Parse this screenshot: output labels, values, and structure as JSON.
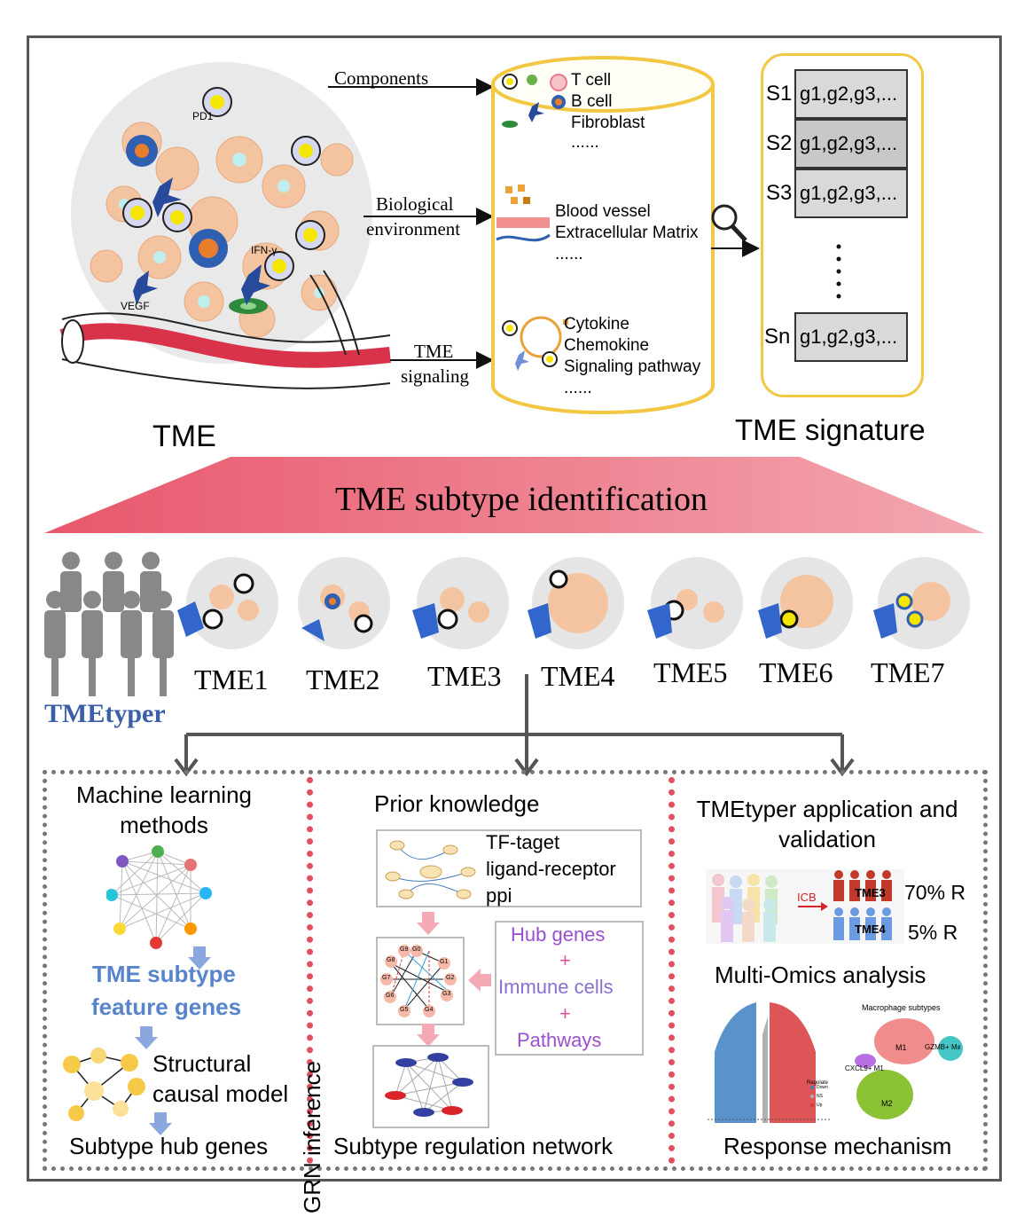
{
  "top": {
    "tme_label": "TME",
    "signature_label": "TME signature",
    "arrow_labels": {
      "components": "Components",
      "bio_env_line1": "Biological",
      "bio_env_line2": "environment",
      "signaling_line1": "TME",
      "signaling_line2": "signaling"
    },
    "cell_labels": {
      "pd1": "PD1",
      "ifn": "IFN-γ",
      "vegf": "VEGF"
    },
    "cylinder": {
      "components": [
        "T cell",
        "B cell",
        "Fibroblast",
        "......"
      ],
      "environment": [
        "Blood vessel",
        "Extracellular Matrix",
        "......"
      ],
      "signaling": [
        "Cytokine",
        "Chemokine",
        "Signaling pathway",
        "......"
      ]
    },
    "signatures": [
      {
        "label": "S1",
        "genes": "g1,g2,g3,..."
      },
      {
        "label": "S2",
        "genes": "g1,g2,g3,..."
      },
      {
        "label": "S3",
        "genes": "g1,g2,g3,..."
      },
      {
        "label": "Sn",
        "genes": "g1,g2,g3,..."
      }
    ]
  },
  "banner": {
    "title": "TME subtype identification"
  },
  "subtypes": [
    "TME1",
    "TME2",
    "TME3",
    "TME4",
    "TME5",
    "TME6",
    "TME7"
  ],
  "tool_name": "TMEtyper",
  "panels": {
    "left": {
      "title_line1": "Machine learning",
      "title_line2": "methods",
      "feature_line1": "TME subtype",
      "feature_line2": "feature genes",
      "causal_line1": "Structural",
      "causal_line2": "causal model",
      "footer": "Subtype hub genes"
    },
    "middle": {
      "title": "Prior knowledge",
      "side_label": "GRN inference",
      "prior_items": [
        "TF-taget",
        "ligand-receptor",
        "ppi"
      ],
      "combo": [
        "Hub genes",
        "+",
        "Immune cells",
        "+",
        "Pathways"
      ],
      "grn_nodes": [
        "G0",
        "G1",
        "G2",
        "G3",
        "G4",
        "G5",
        "G6",
        "G7",
        "G8",
        "G9"
      ],
      "footer": "Subtype regulation network"
    },
    "right": {
      "title_line1": "TMEtyper application and",
      "title_line2": "validation",
      "icb": "ICB",
      "tme3": "TME3",
      "tme4": "TME4",
      "rate1": "70% R",
      "rate2": "5% R",
      "omics_title": "Multi-Omics analysis",
      "umap_title": "Macrophage subtypes",
      "umap_labels": [
        "M1",
        "GZMB+ Macroph",
        "CXCL9+ M1",
        "M2"
      ],
      "legend_title": "Regulate",
      "legend_items": [
        "Down",
        "NS",
        "Up"
      ],
      "footer": "Response mechanism"
    }
  },
  "colors": {
    "banner_left": "#e8576c",
    "banner_right": "#f3a7b0",
    "cylinder_border": "#f2c744",
    "signature_box": "#d9d9d9",
    "dot_red": "#e05060",
    "tool_blue": "#3a5fa8"
  }
}
